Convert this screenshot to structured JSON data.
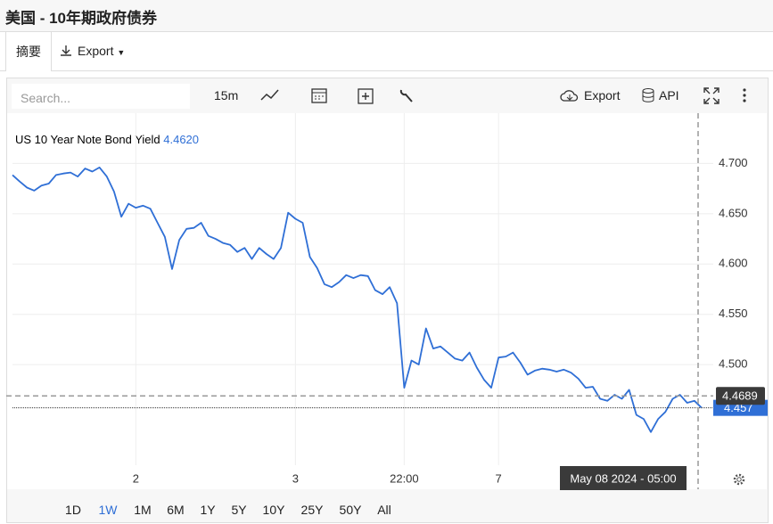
{
  "header": {
    "title": "美国 - 10年期政府债券"
  },
  "tabs": [
    "摘要",
    "Export"
  ],
  "toolbar": {
    "search_placeholder": "Search...",
    "interval": "15m",
    "export": "Export",
    "api": "API"
  },
  "chart_data": {
    "type": "line",
    "title": "US 10 Year Note Bond Yield",
    "legend_value": {
      "value": 4.462,
      "label": "4.4620"
    },
    "color": "#2f6fd6",
    "categories": [
      null,
      null,
      null,
      null,
      null,
      null,
      null,
      null,
      null,
      null,
      null,
      null,
      null,
      null,
      null,
      null,
      null,
      "2",
      null,
      null,
      null,
      null,
      null,
      null,
      null,
      null,
      null,
      null,
      null,
      null,
      null,
      null,
      null,
      null,
      null,
      null,
      null,
      null,
      null,
      "3",
      null,
      null,
      null,
      null,
      null,
      null,
      null,
      null,
      null,
      null,
      null,
      null,
      null,
      null,
      "22:00",
      null,
      null,
      null,
      null,
      null,
      null,
      null,
      null,
      null,
      null,
      null,
      null,
      "7",
      null,
      null,
      null,
      null,
      null,
      null,
      null,
      null,
      null,
      null,
      null,
      null,
      null,
      null,
      null,
      null,
      null,
      null,
      null,
      null,
      null,
      null,
      null,
      null,
      null,
      null,
      null,
      null
    ],
    "values": [
      4.6885,
      4.682,
      4.676,
      4.673,
      4.678,
      4.68,
      4.6885,
      4.69,
      4.691,
      4.687,
      4.695,
      4.692,
      4.696,
      4.687,
      4.672,
      4.647,
      4.66,
      4.656,
      4.658,
      4.655,
      4.641,
      4.627,
      4.595,
      4.624,
      4.635,
      4.636,
      4.641,
      4.628,
      4.625,
      4.621,
      4.619,
      4.612,
      4.616,
      4.605,
      4.616,
      4.61,
      4.605,
      4.616,
      4.651,
      4.645,
      4.641,
      4.607,
      4.596,
      4.58,
      4.577,
      4.582,
      4.589,
      4.586,
      4.589,
      4.588,
      4.574,
      4.57,
      4.577,
      4.561,
      4.477,
      4.504,
      4.5,
      4.536,
      4.516,
      4.518,
      4.512,
      4.506,
      4.504,
      4.512,
      4.497,
      4.485,
      4.477,
      4.507,
      4.508,
      4.512,
      4.502,
      4.49,
      4.494,
      4.496,
      4.495,
      4.493,
      4.495,
      4.492,
      4.486,
      4.477,
      4.478,
      4.466,
      4.464,
      4.47,
      4.466,
      4.475,
      4.45,
      4.446,
      4.433,
      4.446,
      4.453,
      4.466,
      4.47,
      4.462,
      4.464,
      4.457
    ],
    "ylim": [
      4.4,
      4.75
    ],
    "yticks": [
      {
        "value": 4.5,
        "label": "4.500"
      },
      {
        "value": 4.55,
        "label": "4.550"
      },
      {
        "value": 4.6,
        "label": "4.600"
      },
      {
        "value": 4.65,
        "label": "4.650"
      },
      {
        "value": 4.7,
        "label": "4.700"
      }
    ],
    "grid": true,
    "last_value": 4.457,
    "crosshair": {
      "value": 4.4689,
      "x_label": "May 08 2024 - 05:00"
    }
  },
  "ranges": {
    "items": [
      "1D",
      "1W",
      "1M",
      "6M",
      "1Y",
      "5Y",
      "10Y",
      "25Y",
      "50Y",
      "All"
    ],
    "active": "1W"
  }
}
